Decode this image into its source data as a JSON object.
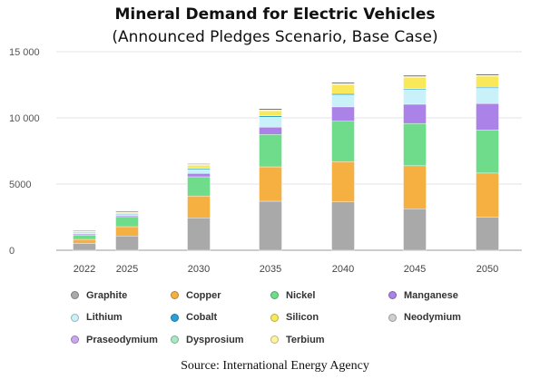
{
  "header": {
    "title": "Mineral Demand for Electric Vehicles",
    "subtitle": "(Announced Pledges Scenario, Base Case)"
  },
  "source": "Source: International Energy Agency",
  "chart_data": {
    "type": "bar",
    "stacked": true,
    "categories": [
      "2022",
      "2025",
      "2030",
      "2035",
      "2040",
      "2045",
      "2050"
    ],
    "ylim": [
      0,
      15000
    ],
    "yticks": [
      0,
      5000,
      10000,
      15000
    ],
    "ytick_labels": [
      "0",
      "5000",
      "10 000",
      "15 000"
    ],
    "grid": true,
    "legend_position": "bottom",
    "series": [
      {
        "name": "Graphite",
        "color": "#a9a9a9",
        "values": [
          520,
          1080,
          2450,
          3700,
          3650,
          3130,
          2480
        ]
      },
      {
        "name": "Copper",
        "color": "#f5b041",
        "values": [
          300,
          700,
          1650,
          2600,
          3050,
          3250,
          3350
        ]
      },
      {
        "name": "Nickel",
        "color": "#6fdc8c",
        "values": [
          330,
          700,
          1450,
          2450,
          3050,
          3200,
          3250
        ]
      },
      {
        "name": "Manganese",
        "color": "#ab82e8",
        "values": [
          80,
          120,
          250,
          550,
          1080,
          1450,
          2000
        ]
      },
      {
        "name": "Lithium",
        "color": "#c9f1fa",
        "values": [
          60,
          100,
          300,
          750,
          900,
          1100,
          1150
        ]
      },
      {
        "name": "Cobalt",
        "color": "#2aa1d6",
        "values": [
          50,
          50,
          80,
          100,
          100,
          80,
          80
        ]
      },
      {
        "name": "Silicon",
        "color": "#f9e85a",
        "values": [
          80,
          120,
          250,
          400,
          700,
          850,
          850
        ]
      },
      {
        "name": "Neodymium",
        "color": "#cfcfcf",
        "values": [
          10,
          15,
          25,
          30,
          30,
          35,
          35
        ]
      },
      {
        "name": "Praseodymium",
        "color": "#c9a8f0",
        "values": [
          5,
          5,
          10,
          10,
          10,
          10,
          10
        ]
      },
      {
        "name": "Dysprosium",
        "color": "#a8e8c4",
        "values": [
          5,
          5,
          10,
          10,
          10,
          10,
          10
        ]
      },
      {
        "name": "Terbium",
        "color": "#fff3a0",
        "values": [
          5,
          5,
          10,
          10,
          10,
          10,
          10
        ]
      },
      {
        "name": "",
        "color": "#1c1c1c",
        "values": [
          50,
          50,
          50,
          70,
          70,
          70,
          70
        ]
      }
    ]
  }
}
